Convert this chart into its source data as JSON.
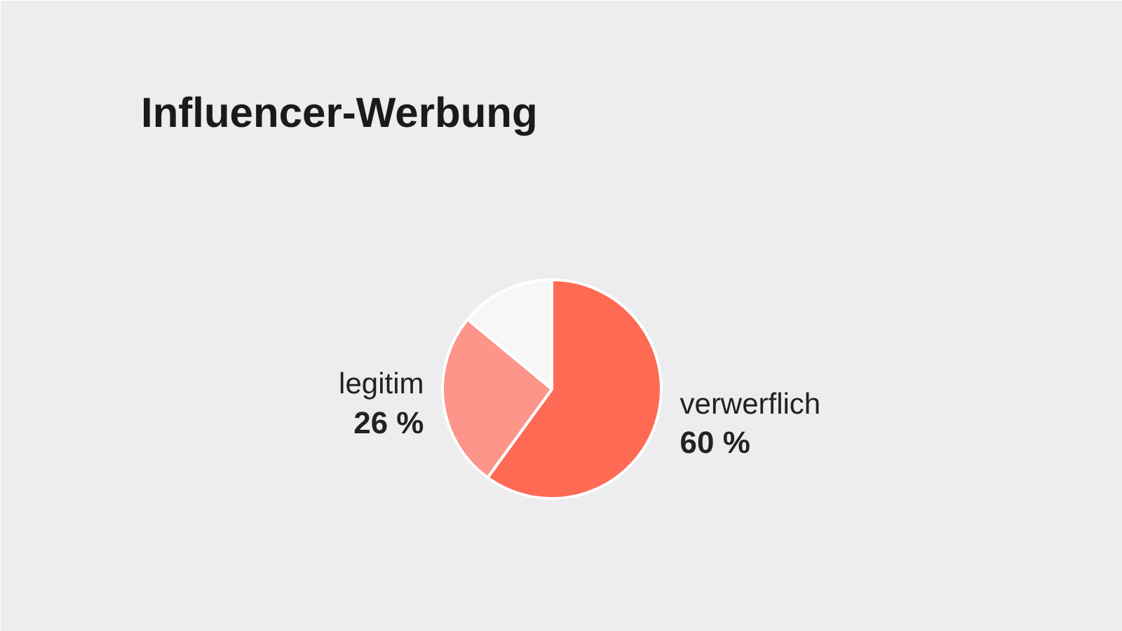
{
  "chart_data": {
    "type": "pie",
    "title": "Influencer-Werbung",
    "categories": [
      "verwerflich",
      "legitim",
      null
    ],
    "values": [
      60,
      26,
      14
    ],
    "colors": [
      "#ff6a55",
      "#fd958a",
      "#f7f7f7"
    ],
    "value_labels": [
      "60 %",
      "26 %",
      null
    ]
  }
}
